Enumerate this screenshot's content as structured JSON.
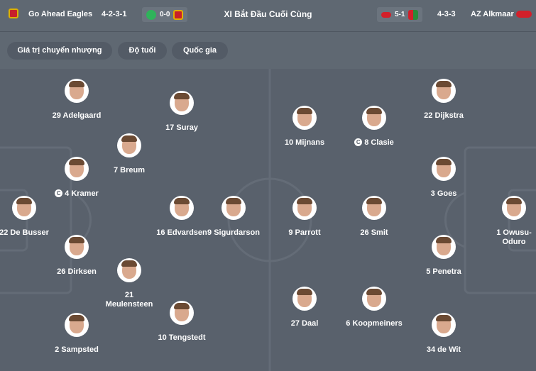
{
  "header": {
    "title": "XI Bắt Đầu Cuối Cùng",
    "home": {
      "name": "Go Ahead Eagles",
      "formation": "4-2-3-1",
      "last_result": "0-0"
    },
    "away": {
      "name": "AZ Alkmaar",
      "formation": "4-3-3",
      "last_result": "5-1"
    }
  },
  "filters": [
    "Giá trị chuyển nhượng",
    "Độ tuổi",
    "Quốc gia"
  ],
  "captain_icon": "C",
  "home_players": [
    {
      "label": "29 Adelgaard"
    },
    {
      "label": "17 Suray"
    },
    {
      "label": "7 Breum"
    },
    {
      "label": "4 Kramer",
      "captain": true
    },
    {
      "label": "22 De Busser"
    },
    {
      "label": "16 Edvardsen"
    },
    {
      "label": "9 Sigurdarson"
    },
    {
      "label": "26 Dirksen"
    },
    {
      "label": "21\nMeulensteen"
    },
    {
      "label": "2 Sampsted"
    },
    {
      "label": "10 Tengstedt"
    }
  ],
  "away_players": [
    {
      "label": "22 Dijkstra"
    },
    {
      "label": "10 Mijnans"
    },
    {
      "label": "8 Clasie",
      "captain": true
    },
    {
      "label": "3 Goes"
    },
    {
      "label": "9 Parrott"
    },
    {
      "label": "26 Smit"
    },
    {
      "label": "1 Owusu-\nOduro"
    },
    {
      "label": "5 Penetra"
    },
    {
      "label": "27 Daal"
    },
    {
      "label": "6 Koopmeiners"
    },
    {
      "label": "34 de Wit"
    }
  ]
}
